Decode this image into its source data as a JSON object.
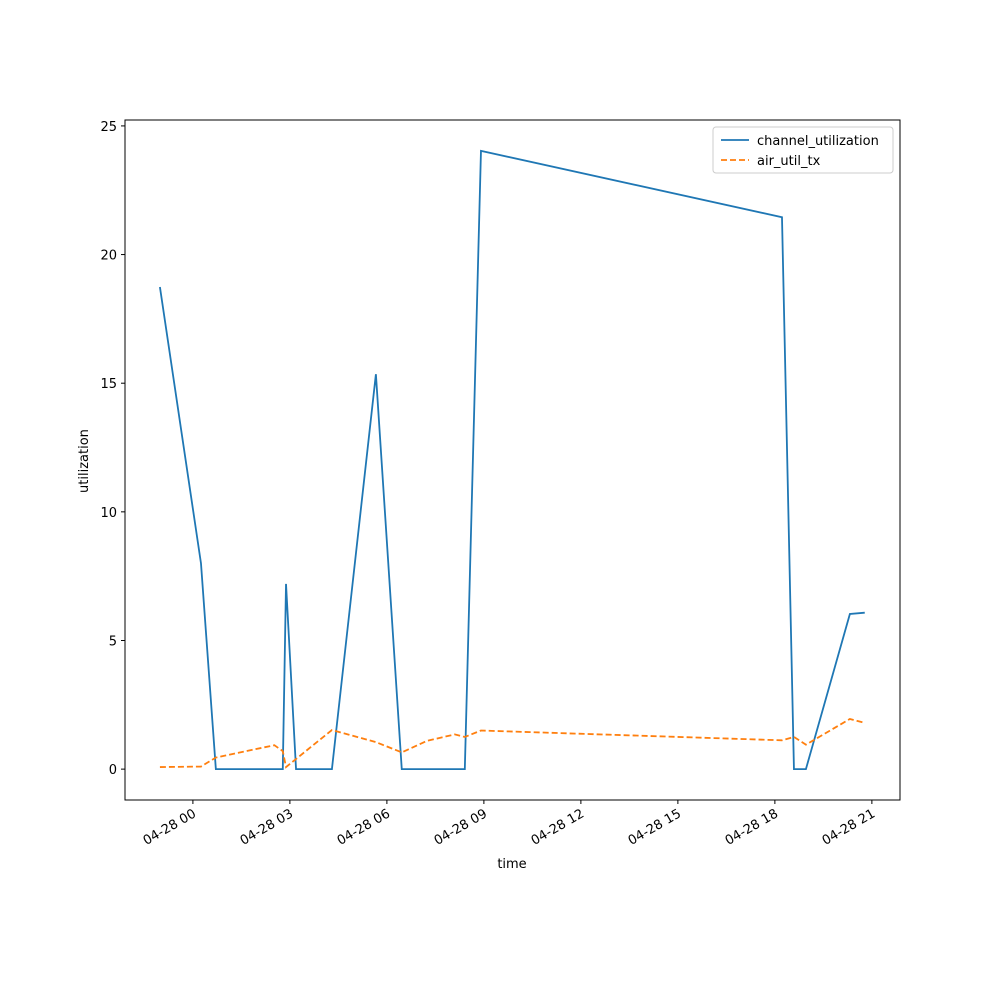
{
  "chart_data": {
    "type": "line",
    "x_label": "time",
    "y_label": "utilization",
    "xlim": [
      -2.1,
      21.87
    ],
    "ylim": [
      -1.2,
      25.23
    ],
    "xticks": [
      {
        "value": 0,
        "label": "04-28 00"
      },
      {
        "value": 3,
        "label": "04-28 03"
      },
      {
        "value": 6,
        "label": "04-28 06"
      },
      {
        "value": 9,
        "label": "04-28 09"
      },
      {
        "value": 12,
        "label": "04-28 12"
      },
      {
        "value": 15,
        "label": "04-28 15"
      },
      {
        "value": 18,
        "label": "04-28 18"
      },
      {
        "value": 21,
        "label": "04-28 21"
      }
    ],
    "yticks": [
      0,
      5,
      10,
      15,
      20,
      25
    ],
    "legend": "upper right",
    "series": [
      {
        "name": "channel_utilization",
        "color": "#1f77b4",
        "dash": "solid",
        "x": [
          -1.02,
          0.25,
          0.71,
          2.78,
          2.88,
          3.19,
          4.3,
          5.66,
          6.46,
          8.41,
          8.91,
          18.22,
          18.59,
          18.96,
          20.32,
          20.78
        ],
        "values": [
          18.74,
          8.0,
          0,
          0,
          7.2,
          0,
          0,
          15.35,
          0,
          0,
          24.03,
          21.45,
          0,
          0,
          6.03,
          6.08
        ]
      },
      {
        "name": "air_util_tx",
        "color": "#ff7f0e",
        "dash": "dashed",
        "x": [
          -1.02,
          0.25,
          0.71,
          2.52,
          2.78,
          2.88,
          4.3,
          5.66,
          6.46,
          7.24,
          8.1,
          8.41,
          8.91,
          18.22,
          18.59,
          18.96,
          20.32,
          20.78
        ],
        "values": [
          0.08,
          0.1,
          0.45,
          0.93,
          0.7,
          0.08,
          1.52,
          1.05,
          0.65,
          1.1,
          1.35,
          1.25,
          1.5,
          1.12,
          1.25,
          0.95,
          1.95,
          1.8
        ]
      }
    ]
  }
}
